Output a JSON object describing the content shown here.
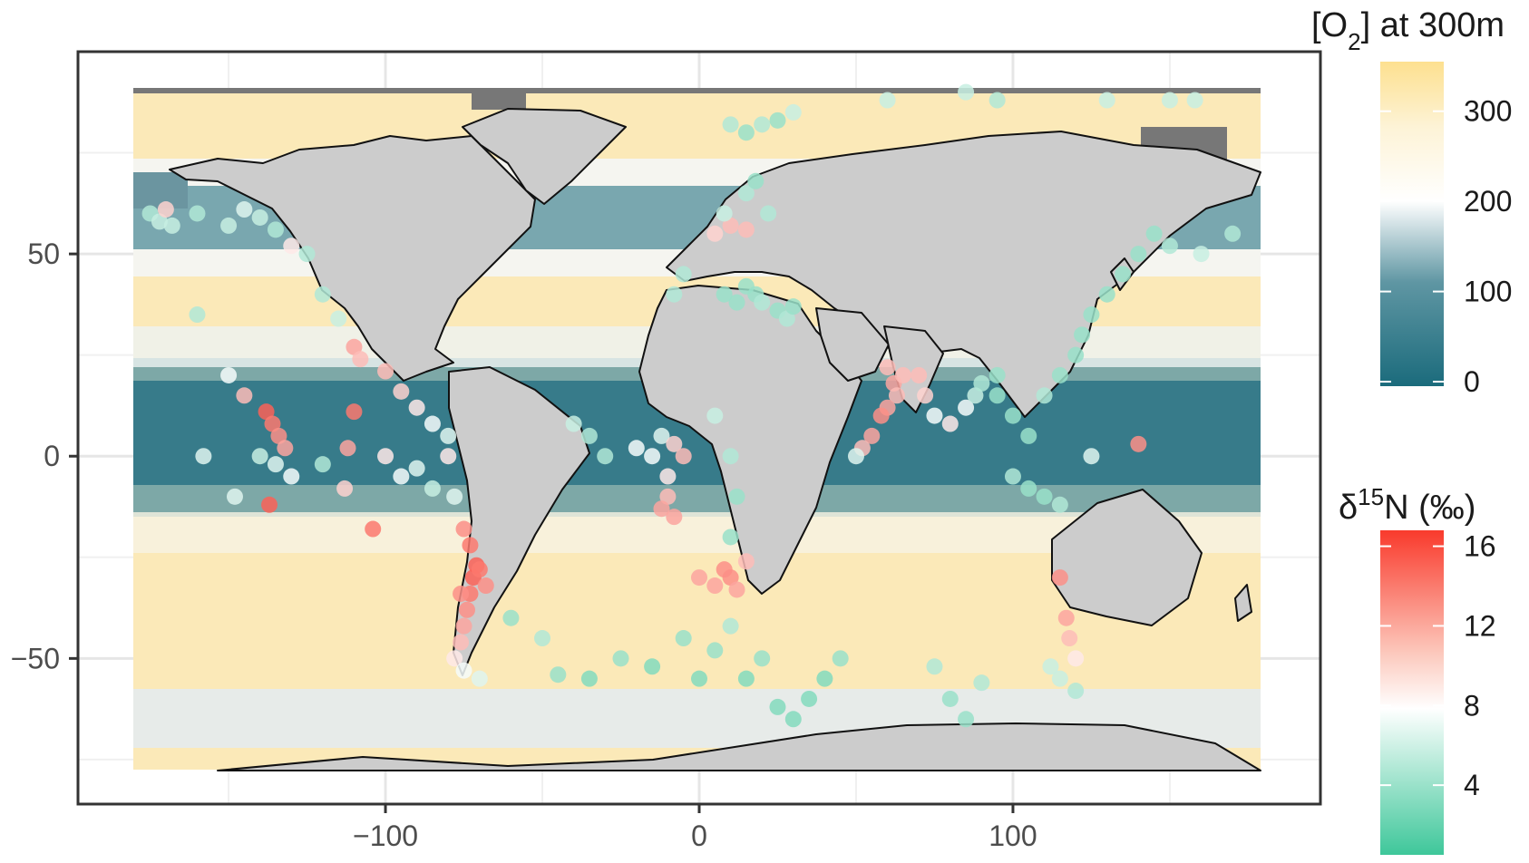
{
  "chart_data": {
    "type": "scatter",
    "x_ticks": [
      {
        "value": -100,
        "label": "−100"
      },
      {
        "value": 0,
        "label": "0"
      },
      {
        "value": 100,
        "label": "100"
      }
    ],
    "y_ticks": [
      {
        "value": 50,
        "label": "50"
      },
      {
        "value": 0,
        "label": "0"
      },
      {
        "value": -50,
        "label": "−50"
      }
    ],
    "xlim": [
      -198,
      198
    ],
    "ylim": [
      -86,
      100
    ],
    "grid": true,
    "legend_placement": "right",
    "o2_legend": {
      "title_prefix": "[O",
      "title_sub": "2",
      "title_suffix": "] at 300m",
      "range": [
        -5,
        355
      ],
      "ticks": [
        {
          "value": 300,
          "label": "300"
        },
        {
          "value": 200,
          "label": "200"
        },
        {
          "value": 100,
          "label": "100"
        },
        {
          "value": 0,
          "label": "0"
        }
      ],
      "colors": {
        "low": "#1b6b7c",
        "mid": "#ffffff",
        "high": "#fde08f"
      }
    },
    "d15n_legend": {
      "title_prefix": "δ",
      "title_sup": "15",
      "title_suffix": "N (‰)",
      "range": [
        0.5,
        16.8
      ],
      "ticks": [
        {
          "value": 16,
          "label": "16"
        },
        {
          "value": 12,
          "label": "12"
        },
        {
          "value": 8,
          "label": "8"
        },
        {
          "value": 4,
          "label": "4"
        }
      ],
      "colors": {
        "low": "#3ec79a",
        "mid": "#ffffff",
        "high": "#f93a2c"
      }
    },
    "points": [
      [
        -175,
        60,
        5
      ],
      [
        -172,
        58,
        6
      ],
      [
        -170,
        61,
        10
      ],
      [
        -168,
        57,
        6
      ],
      [
        -160,
        60,
        5
      ],
      [
        -150,
        57,
        6
      ],
      [
        -145,
        61,
        7
      ],
      [
        -140,
        59,
        6
      ],
      [
        -135,
        56,
        5
      ],
      [
        -130,
        52,
        9
      ],
      [
        -125,
        50,
        5
      ],
      [
        -120,
        40,
        5
      ],
      [
        -115,
        34,
        6
      ],
      [
        -110,
        27,
        12
      ],
      [
        -108,
        24,
        11
      ],
      [
        -100,
        21,
        11
      ],
      [
        -95,
        16,
        10
      ],
      [
        -90,
        12,
        9
      ],
      [
        -85,
        8,
        8
      ],
      [
        -80,
        5,
        7
      ],
      [
        -138,
        11,
        15
      ],
      [
        -136,
        8,
        14
      ],
      [
        -134,
        5,
        13
      ],
      [
        -132,
        2,
        12
      ],
      [
        -135,
        -2,
        7
      ],
      [
        -137,
        -12,
        15
      ],
      [
        -158,
        0,
        7
      ],
      [
        -140,
        0,
        6
      ],
      [
        -120,
        -2,
        5
      ],
      [
        -110,
        11,
        14
      ],
      [
        -112,
        2,
        12
      ],
      [
        -113,
        -8,
        10
      ],
      [
        -100,
        0,
        9
      ],
      [
        -104,
        -18,
        14
      ],
      [
        -95,
        -5,
        8
      ],
      [
        -90,
        -3,
        7
      ],
      [
        -85,
        -8,
        6
      ],
      [
        -80,
        0,
        9
      ],
      [
        -78,
        -10,
        7
      ],
      [
        -75,
        -18,
        13
      ],
      [
        -73,
        -22,
        14
      ],
      [
        -71,
        -27,
        15
      ],
      [
        -72,
        -30,
        15
      ],
      [
        -73,
        -34,
        14
      ],
      [
        -74,
        -38,
        13
      ],
      [
        -75,
        -42,
        12
      ],
      [
        -76,
        -46,
        11
      ],
      [
        -78,
        -50,
        9
      ],
      [
        -75,
        -53,
        8
      ],
      [
        -70,
        -55,
        7
      ],
      [
        -76,
        -34,
        13
      ],
      [
        -70,
        -28,
        14
      ],
      [
        -68,
        -32,
        13
      ],
      [
        -60,
        -40,
        4
      ],
      [
        -50,
        -45,
        5
      ],
      [
        -45,
        -54,
        4
      ],
      [
        -35,
        -55,
        3
      ],
      [
        -25,
        -50,
        4
      ],
      [
        -15,
        -52,
        3
      ],
      [
        -5,
        -45,
        4
      ],
      [
        0,
        -55,
        3
      ],
      [
        5,
        -48,
        4
      ],
      [
        10,
        -42,
        5
      ],
      [
        15,
        -55,
        3
      ],
      [
        20,
        -50,
        4
      ],
      [
        25,
        -62,
        3
      ],
      [
        30,
        -65,
        3
      ],
      [
        35,
        -60,
        3
      ],
      [
        40,
        -55,
        3
      ],
      [
        45,
        -50,
        4
      ],
      [
        -10,
        -5,
        9
      ],
      [
        -15,
        0,
        8
      ],
      [
        -12,
        5,
        7
      ],
      [
        -8,
        3,
        10
      ],
      [
        -5,
        0,
        11
      ],
      [
        -10,
        -10,
        11
      ],
      [
        -12,
        -13,
        12
      ],
      [
        -8,
        -15,
        12
      ],
      [
        -20,
        2,
        8
      ],
      [
        -30,
        0,
        5
      ],
      [
        -35,
        5,
        5
      ],
      [
        -40,
        8,
        6
      ],
      [
        10,
        -30,
        13
      ],
      [
        8,
        -28,
        13
      ],
      [
        12,
        -33,
        12
      ],
      [
        15,
        -26,
        11
      ],
      [
        5,
        -32,
        12
      ],
      [
        0,
        -30,
        12
      ],
      [
        10,
        -20,
        4
      ],
      [
        12,
        -10,
        4
      ],
      [
        10,
        0,
        5
      ],
      [
        5,
        10,
        6
      ],
      [
        8,
        40,
        4
      ],
      [
        12,
        38,
        4
      ],
      [
        15,
        42,
        4
      ],
      [
        18,
        40,
        4
      ],
      [
        20,
        38,
        5
      ],
      [
        25,
        36,
        4
      ],
      [
        28,
        34,
        5
      ],
      [
        30,
        37,
        4
      ],
      [
        -5,
        45,
        5
      ],
      [
        -8,
        40,
        5
      ],
      [
        5,
        55,
        10
      ],
      [
        10,
        57,
        11
      ],
      [
        15,
        56,
        11
      ],
      [
        8,
        60,
        6
      ],
      [
        15,
        65,
        5
      ],
      [
        18,
        68,
        4
      ],
      [
        22,
        60,
        5
      ],
      [
        10,
        82,
        5
      ],
      [
        15,
        80,
        4
      ],
      [
        20,
        82,
        5
      ],
      [
        25,
        83,
        4
      ],
      [
        30,
        85,
        6
      ],
      [
        60,
        22,
        11
      ],
      [
        62,
        18,
        12
      ],
      [
        65,
        20,
        11
      ],
      [
        63,
        15,
        11
      ],
      [
        60,
        12,
        12
      ],
      [
        58,
        10,
        13
      ],
      [
        55,
        5,
        12
      ],
      [
        52,
        2,
        11
      ],
      [
        50,
        0,
        7
      ],
      [
        70,
        20,
        11
      ],
      [
        72,
        15,
        10
      ],
      [
        75,
        10,
        8
      ],
      [
        80,
        8,
        9
      ],
      [
        85,
        12,
        8
      ],
      [
        88,
        15,
        6
      ],
      [
        90,
        18,
        5
      ],
      [
        95,
        15,
        4
      ],
      [
        100,
        10,
        4
      ],
      [
        105,
        5,
        4
      ],
      [
        100,
        -5,
        5
      ],
      [
        105,
        -8,
        4
      ],
      [
        110,
        -10,
        4
      ],
      [
        115,
        -12,
        5
      ],
      [
        95,
        20,
        4
      ],
      [
        110,
        15,
        5
      ],
      [
        115,
        20,
        4
      ],
      [
        120,
        25,
        4
      ],
      [
        122,
        30,
        4
      ],
      [
        125,
        35,
        4
      ],
      [
        130,
        40,
        4
      ],
      [
        135,
        45,
        4
      ],
      [
        140,
        50,
        4
      ],
      [
        145,
        55,
        4
      ],
      [
        150,
        52,
        5
      ],
      [
        160,
        50,
        6
      ],
      [
        170,
        55,
        5
      ],
      [
        125,
        0,
        7
      ],
      [
        140,
        3,
        13
      ],
      [
        115,
        -30,
        13
      ],
      [
        117,
        -40,
        12
      ],
      [
        118,
        -45,
        11
      ],
      [
        120,
        -50,
        9
      ],
      [
        112,
        -52,
        6
      ],
      [
        115,
        -55,
        6
      ],
      [
        120,
        -58,
        5
      ],
      [
        75,
        -52,
        5
      ],
      [
        80,
        -60,
        4
      ],
      [
        85,
        -65,
        4
      ],
      [
        90,
        -56,
        5
      ],
      [
        -160,
        35,
        5
      ],
      [
        -150,
        20,
        8
      ],
      [
        -145,
        15,
        11
      ],
      [
        -148,
        -10,
        7
      ],
      [
        -130,
        -5,
        8
      ],
      [
        60,
        88,
        6
      ],
      [
        85,
        90,
        6
      ],
      [
        95,
        88,
        5
      ],
      [
        130,
        88,
        6
      ],
      [
        150,
        88,
        6
      ],
      [
        158,
        88,
        6
      ]
    ]
  }
}
